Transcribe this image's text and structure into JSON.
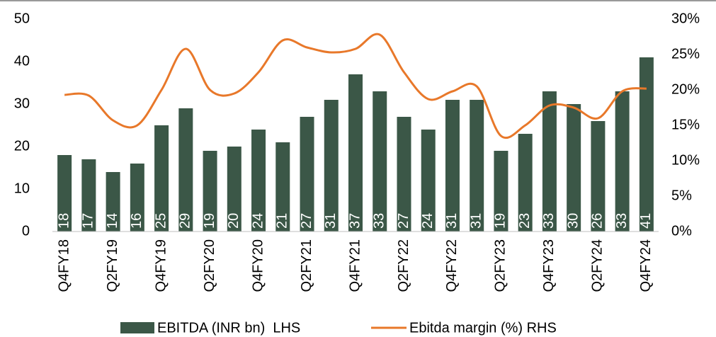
{
  "chart_data": {
    "type": "bar_line",
    "categories": [
      "Q4FY18",
      null,
      "Q2FY19",
      null,
      "Q4FY19",
      null,
      "Q2FY20",
      null,
      "Q4FY20",
      null,
      "Q2FY21",
      null,
      "Q4FY21",
      null,
      "Q2FY22",
      null,
      "Q4FY22",
      null,
      "Q2FY23",
      null,
      "Q4FY23",
      null,
      "Q2FY24",
      null,
      "Q4FY24"
    ],
    "series": [
      {
        "name": "EBITDA (INR bn)  LHS",
        "type": "bar",
        "color": "#3b5747",
        "values": [
          18,
          17,
          14,
          16,
          25,
          29,
          19,
          20,
          24,
          21,
          27,
          31,
          37,
          33,
          27,
          24,
          31,
          31,
          19,
          23,
          33,
          30,
          26,
          33,
          41
        ]
      },
      {
        "name": "Ebitda margin (%) RHS",
        "type": "line",
        "axis": "y2",
        "color": "#e8782a",
        "values": [
          19.3,
          19.2,
          15.7,
          15.0,
          20.0,
          25.8,
          20.0,
          19.5,
          22.5,
          27.0,
          26.0,
          25.3,
          25.8,
          27.8,
          22.5,
          18.7,
          19.8,
          20.5,
          13.5,
          15.0,
          17.8,
          17.5,
          16.0,
          19.8,
          20.2
        ]
      }
    ],
    "ylim": [
      0,
      50
    ],
    "yticks": [
      0,
      10,
      20,
      30,
      40,
      50
    ],
    "y2lim": [
      0,
      30
    ],
    "y2ticks": [
      {
        "value": 0,
        "label": "0%"
      },
      {
        "value": 5,
        "label": "5%"
      },
      {
        "value": 10,
        "label": "10%"
      },
      {
        "value": 15,
        "label": "15%"
      },
      {
        "value": 20,
        "label": "20%"
      },
      {
        "value": 25,
        "label": "25%"
      },
      {
        "value": 30,
        "label": "30%"
      }
    ],
    "legend": "bottom"
  }
}
